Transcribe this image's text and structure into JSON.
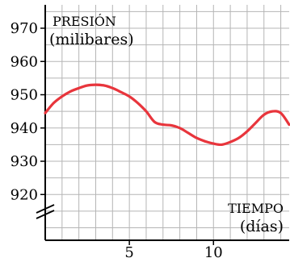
{
  "chart_data": {
    "type": "line",
    "ylabel_line1": "PRESIÓN",
    "ylabel_line2": "(milibares)",
    "xlabel_line1": "TIEMPO",
    "xlabel_line2": "(días)",
    "x_ticks": [
      5,
      10
    ],
    "y_ticks": [
      920,
      930,
      940,
      950,
      960,
      970
    ],
    "xlim": [
      0,
      14.5
    ],
    "ylim": [
      908,
      975
    ],
    "axis_break": true,
    "grid": true,
    "colors": {
      "series": "#e8353c",
      "grid": "#b5b5b5",
      "axis": "#000000"
    },
    "series": [
      {
        "x": [
          0,
          0.5,
          1,
          1.5,
          2,
          2.5,
          3,
          3.5,
          4,
          4.5,
          5,
          5.5,
          6,
          6.5,
          7,
          7.5,
          8,
          8.5,
          9,
          9.5,
          10,
          10.5,
          11,
          11.5,
          12,
          12.5,
          13,
          13.5,
          14,
          14.5
        ],
        "y": [
          944.5,
          947.5,
          949.5,
          951,
          952,
          952.8,
          953,
          952.8,
          952,
          950.8,
          949.5,
          947.5,
          945,
          941.8,
          941,
          940.8,
          940,
          938.5,
          937,
          936,
          935.3,
          935,
          935.8,
          937,
          939,
          941.5,
          944,
          945,
          944.5,
          941
        ]
      }
    ]
  }
}
